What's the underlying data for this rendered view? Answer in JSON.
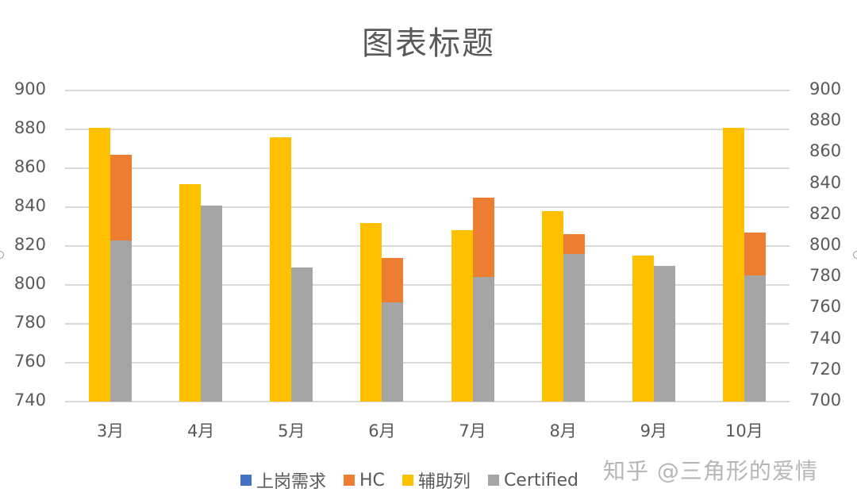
{
  "chart_data": {
    "type": "bar",
    "title": "图表标题",
    "categories": [
      "3月",
      "4月",
      "5月",
      "6月",
      "7月",
      "8月",
      "9月",
      "10月"
    ],
    "series": [
      {
        "name": "上岗需求",
        "color": "#4472C4",
        "values": [
          null,
          null,
          null,
          null,
          null,
          null,
          null,
          null
        ]
      },
      {
        "name": "HC",
        "color": "#ED7D31",
        "values": [
          867,
          null,
          null,
          814,
          845,
          826,
          null,
          827
        ]
      },
      {
        "name": "辅助列",
        "color": "#FFC000",
        "values": [
          881,
          852,
          876,
          832,
          828,
          838,
          815,
          881
        ]
      },
      {
        "name": "Certified",
        "color": "#A5A5A5",
        "values": [
          823,
          841,
          809,
          791,
          804,
          816,
          810,
          805
        ]
      }
    ],
    "left_axis": {
      "min": 740,
      "max": 900,
      "step": 20,
      "ticks": [
        900,
        880,
        860,
        840,
        820,
        800,
        780,
        760,
        740
      ]
    },
    "right_axis": {
      "min": 700,
      "max": 900,
      "step": 20,
      "ticks": [
        900,
        880,
        860,
        840,
        820,
        800,
        780,
        760,
        740,
        720,
        700
      ]
    },
    "xlabel": "",
    "ylabel": "",
    "ylim": [
      740,
      900
    ],
    "grid": true,
    "legend_position": "bottom"
  },
  "legend": {
    "items": [
      {
        "label": "上岗需求",
        "color": "#4472C4"
      },
      {
        "label": "HC",
        "color": "#ED7D31"
      },
      {
        "label": "辅助列",
        "color": "#FFC000"
      },
      {
        "label": "Certified",
        "color": "#A5A5A5"
      }
    ]
  },
  "watermark": "知乎 @三角形的爱情"
}
